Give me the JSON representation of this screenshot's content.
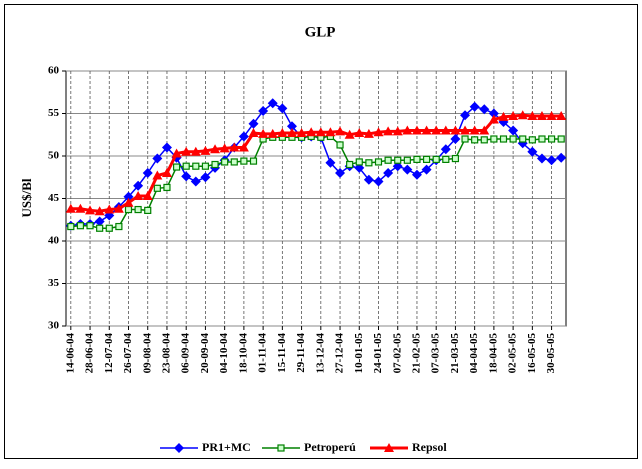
{
  "chart_data": {
    "type": "line",
    "title": "GLP",
    "y_label": "US$/Bl",
    "categories": [
      "14-06-04",
      null,
      "28-06-04",
      null,
      "12-07-04",
      null,
      "26-07-04",
      null,
      "09-08-04",
      null,
      "23-08-04",
      null,
      "06-09-04",
      null,
      "20-09-04",
      null,
      "04-10-04",
      null,
      "18-10-04",
      null,
      "01-11-04",
      null,
      "15-11-04",
      null,
      "29-11-04",
      null,
      "13-12-04",
      null,
      "27-12-04",
      null,
      "10-01-05",
      null,
      "24-01-05",
      null,
      "07-02-05",
      null,
      "21-02-05",
      null,
      "07-03-05",
      null,
      "21-03-05",
      null,
      "04-04-05",
      null,
      "18-04-05",
      null,
      "02-05-05",
      null,
      "16-05-05",
      null,
      "30-05-05",
      null
    ],
    "series": [
      {
        "name": "PR1+MC",
        "color": "#0000ff",
        "marker": "diamond",
        "values": [
          41.8,
          42,
          42,
          42.3,
          43,
          44,
          45.2,
          46.5,
          48,
          49.7,
          51,
          49.8,
          47.6,
          47,
          47.5,
          48.6,
          49.5,
          51,
          52.3,
          53.8,
          55.3,
          56.2,
          55.6,
          53.5,
          52.2,
          52.3,
          52.2,
          49.2,
          48,
          48.8,
          48.6,
          47.2,
          47,
          48,
          48.8,
          48.4,
          47.8,
          48.4,
          49.5,
          50.8,
          52,
          54.8,
          55.8,
          55.5,
          55,
          54,
          53,
          51.5,
          50.5,
          49.7,
          49.5,
          49.8
        ]
      },
      {
        "name": "Petroperú",
        "color": "#008000",
        "marker": "square",
        "values": [
          41.7,
          41.8,
          41.8,
          41.5,
          41.5,
          41.7,
          43.7,
          43.7,
          43.6,
          46.2,
          46.3,
          48.7,
          48.8,
          48.8,
          48.8,
          49,
          49.3,
          49.3,
          49.4,
          49.4,
          52,
          52.2,
          52.2,
          52.2,
          52.2,
          52.3,
          52.2,
          52.3,
          51.3,
          49,
          49.3,
          49.2,
          49.3,
          49.5,
          49.5,
          49.5,
          49.6,
          49.6,
          49.6,
          49.6,
          49.7,
          52,
          51.9,
          51.9,
          52,
          52,
          52,
          52,
          51.9,
          52,
          52,
          52
        ]
      },
      {
        "name": "Repsol",
        "color": "#ff0000",
        "marker": "triangle",
        "values": [
          43.8,
          43.8,
          43.6,
          43.5,
          43.7,
          43.8,
          44.5,
          45.3,
          45.3,
          47.7,
          48,
          50.3,
          50.5,
          50.5,
          50.6,
          50.8,
          50.9,
          51,
          51,
          52.7,
          52.6,
          52.6,
          52.7,
          52.7,
          52.7,
          52.8,
          52.8,
          52.8,
          52.9,
          52.5,
          52.7,
          52.6,
          52.8,
          52.9,
          52.9,
          53,
          53,
          53,
          53,
          53,
          53,
          53,
          53,
          53,
          54.3,
          54.6,
          54.7,
          54.8,
          54.7,
          54.7,
          54.7,
          54.7
        ]
      }
    ],
    "ylim": [
      30,
      60
    ],
    "yticks": [
      30,
      35,
      40,
      45,
      50,
      55,
      60
    ],
    "grid": true,
    "legend": "bottom"
  }
}
